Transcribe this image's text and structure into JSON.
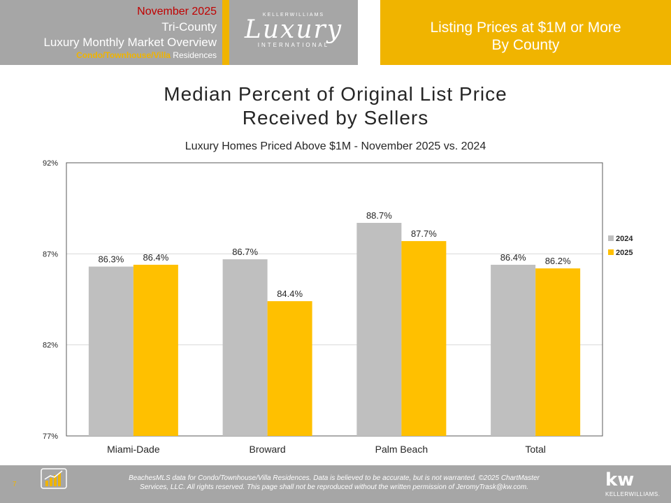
{
  "header": {
    "date": "November 2025",
    "region": "Tri-County",
    "overview": "Luxury Monthly Market Overview",
    "type_highlight": "Condo/Townhouse/Villa",
    "type_suffix": " Residences",
    "logo_top": "KELLERWILLIAMS",
    "logo_main": "Luxury",
    "logo_bottom": "INTERNATIONAL",
    "right_line1": "Listing Prices at $1M or More",
    "right_line2": "By County"
  },
  "colors": {
    "gold": "#f0b400",
    "gray": "#a6a6a6",
    "bar_2024": "#bfbfbf",
    "bar_2025": "#ffc000",
    "date_red": "#c00000"
  },
  "chart_data": {
    "type": "bar",
    "title": "Median Percent of Original List Price Received by Sellers",
    "title_line1": "Median Percent of Original List Price",
    "title_line2": "Received by Sellers",
    "subtitle": "Luxury Homes Priced Above $1M - November 2025 vs. 2024",
    "categories": [
      "Miami-Dade",
      "Broward",
      "Palm Beach",
      "Total"
    ],
    "series": [
      {
        "name": "2024",
        "values": [
          86.3,
          86.7,
          88.7,
          86.4
        ],
        "labels": [
          "86.3%",
          "86.7%",
          "88.7%",
          "86.4%"
        ]
      },
      {
        "name": "2025",
        "values": [
          86.4,
          84.4,
          87.7,
          86.2
        ],
        "labels": [
          "86.4%",
          "84.4%",
          "87.7%",
          "86.2%"
        ]
      }
    ],
    "ylim": [
      77,
      92
    ],
    "yticks": [
      77,
      82,
      87,
      92
    ],
    "ytick_labels": [
      "77%",
      "82%",
      "87%",
      "92%"
    ],
    "grid": true,
    "legend": "right"
  },
  "footer": {
    "page_number": "7",
    "logo_text": "ChartMaster Services, LLC",
    "line1": "BeachesMLS data for Condo/Townhouse/Villa Residences.  Data is believed to be accurate, but is not warranted.   ©2025  ChartMaster",
    "line2": "Services, LLC.  All rights reserved. This page shall not be reproduced without the written permission of JeromyTrask@kw.com.",
    "brand_mark": "kw",
    "brand_name": "KELLERWILLIAMS."
  }
}
